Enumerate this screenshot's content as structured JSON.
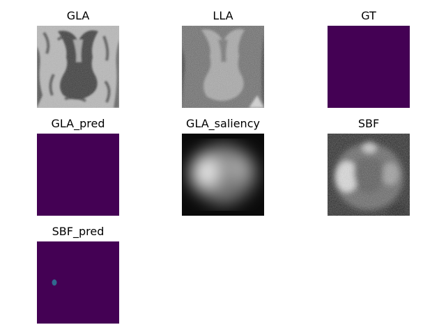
{
  "figure": {
    "panels": [
      {
        "title": "GLA",
        "image": "mri-axial-slice-grayscale"
      },
      {
        "title": "LLA",
        "image": "mri-axial-slice-grayscale-noisy"
      },
      {
        "title": "GT",
        "image": "segmentation-mask-empty"
      },
      {
        "title": "GLA_pred",
        "image": "segmentation-mask-empty"
      },
      {
        "title": "GLA_saliency",
        "image": "saliency-map-blurred"
      },
      {
        "title": "SBF",
        "image": "saliency-map-grayscale"
      },
      {
        "title": "SBF_pred",
        "image": "segmentation-mask-small-blob"
      }
    ],
    "colors": {
      "mask_background": "#440154",
      "mask_blob": "#31688e"
    }
  }
}
